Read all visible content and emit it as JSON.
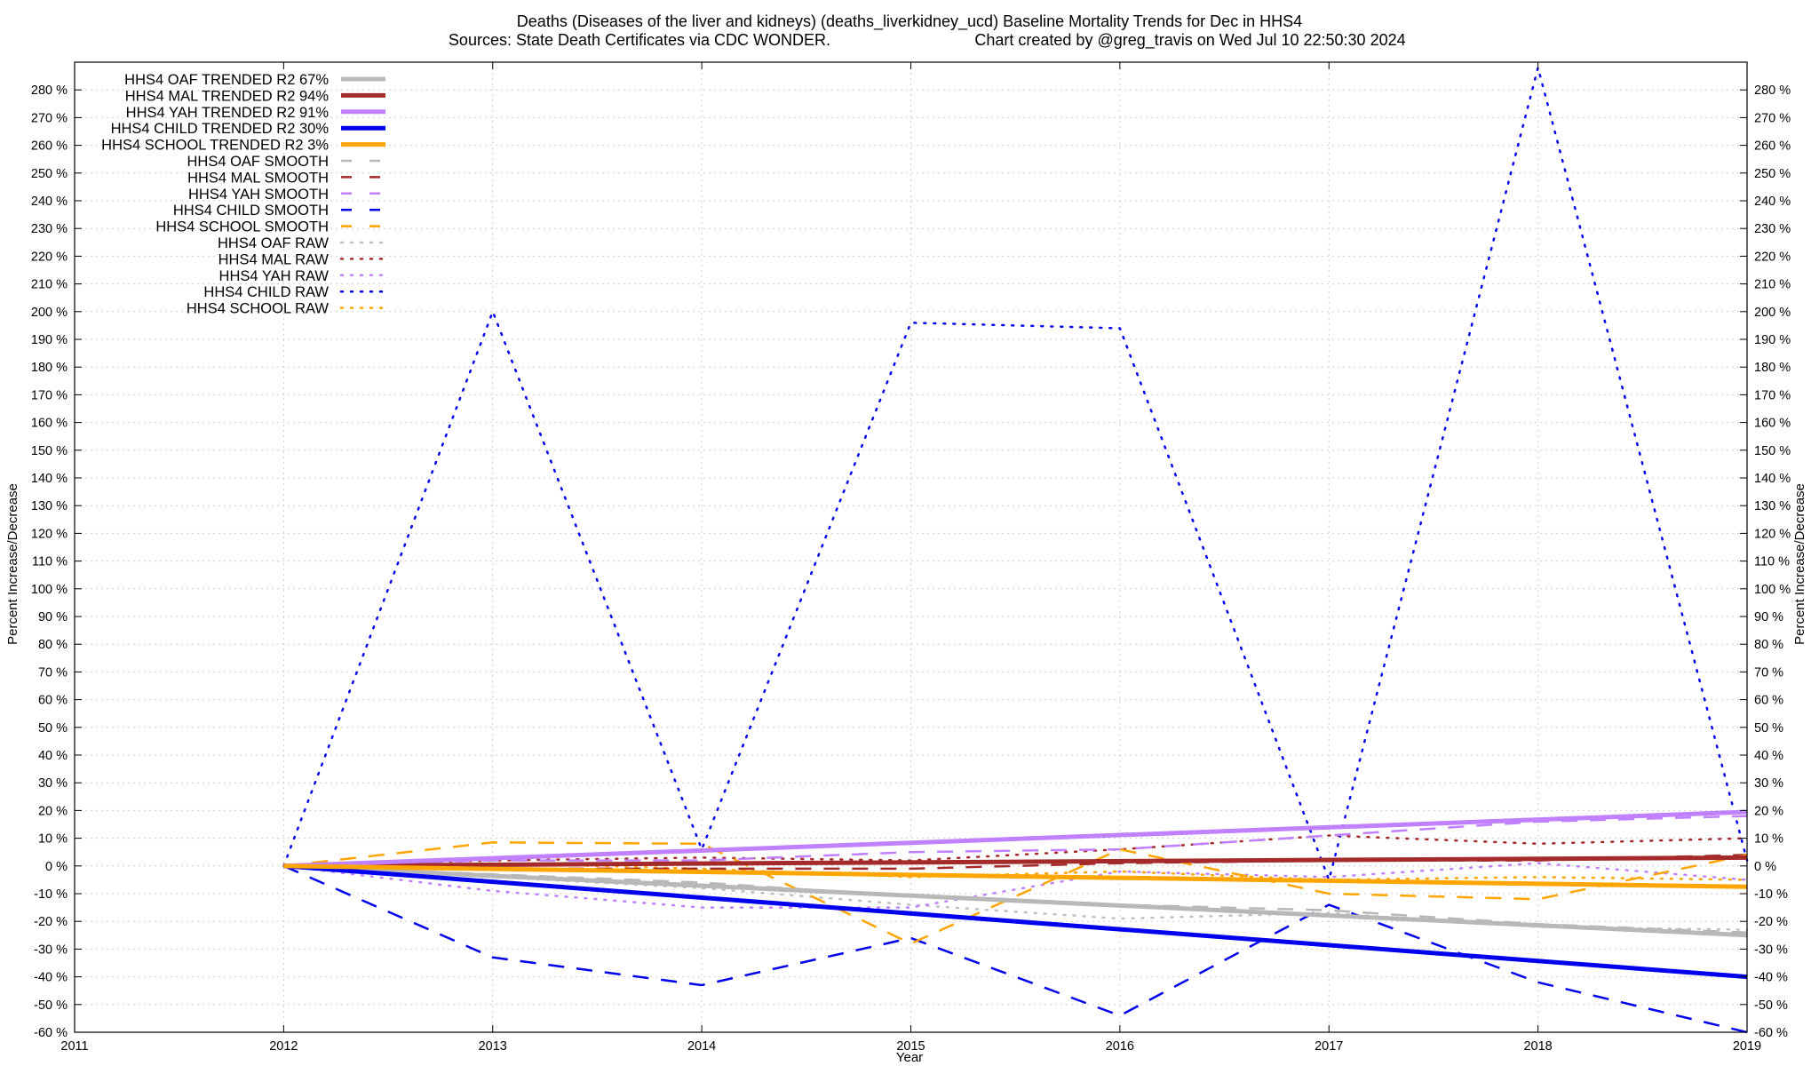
{
  "chart_data": {
    "type": "line",
    "title_line1": "Deaths (Diseases of the liver and kidneys) (deaths_liverkidney_ucd)  Baseline Mortality Trends for Dec in HHS4",
    "title_line2_left": "Sources: State Death Certificates via CDC WONDER.",
    "title_line2_right": "Chart created by @greg_travis on Wed Jul 10 22:50:30 2024",
    "xlabel": "Year",
    "ylabel_left": "Percent Increase/Decrease",
    "ylabel_right": "Percent Increase/Decrease",
    "xlim": [
      2011,
      2019
    ],
    "ylim": [
      -60,
      290
    ],
    "x_ticks": [
      2011,
      2012,
      2013,
      2014,
      2015,
      2016,
      2017,
      2018,
      2019
    ],
    "x_tick_labels": [
      "2011",
      "2012",
      "2013",
      "2014",
      "2015",
      "2016",
      "2017",
      "2018",
      "2019"
    ],
    "y_ticks": [
      -60,
      -50,
      -40,
      -30,
      -20,
      -10,
      0,
      10,
      20,
      30,
      40,
      50,
      60,
      70,
      80,
      90,
      100,
      110,
      120,
      130,
      140,
      150,
      160,
      170,
      180,
      190,
      200,
      210,
      220,
      230,
      240,
      250,
      260,
      270,
      280
    ],
    "y_tick_labels": [
      "-60 %",
      "-50 %",
      "-40 %",
      "-30 %",
      "-20 %",
      "-10 %",
      "0 %",
      "10 %",
      "20 %",
      "30 %",
      "40 %",
      "50 %",
      "60 %",
      "70 %",
      "80 %",
      "90 %",
      "100 %",
      "110 %",
      "120 %",
      "130 %",
      "140 %",
      "150 %",
      "160 %",
      "170 %",
      "180 %",
      "190 %",
      "200 %",
      "210 %",
      "220 %",
      "230 %",
      "240 %",
      "250 %",
      "260 %",
      "270 %",
      "280 %"
    ],
    "grid": true,
    "legend_position": "top-left",
    "series": [
      {
        "name": "HHS4 OAF TRENDED R2  67%",
        "style": "solid",
        "color": "#b8b8b8",
        "width": 5,
        "x": [
          2012,
          2019
        ],
        "y": [
          0,
          -25
        ]
      },
      {
        "name": "HHS4 MAL TRENDED R2  94%",
        "style": "solid",
        "color": "#a52a2a",
        "width": 5,
        "x": [
          2012,
          2019
        ],
        "y": [
          0,
          3
        ]
      },
      {
        "name": "HHS4 YAH TRENDED R2  91%",
        "style": "solid",
        "color": "#c080ff",
        "width": 5,
        "x": [
          2012,
          2019
        ],
        "y": [
          0,
          19.5
        ]
      },
      {
        "name": "HHS4 CHILD TRENDED R2  30%",
        "style": "solid",
        "color": "#0000ee",
        "width": 5,
        "x": [
          2012,
          2019
        ],
        "y": [
          0,
          -40
        ]
      },
      {
        "name": "HHS4 SCHOOL TRENDED R2   3%",
        "style": "solid",
        "color": "#ffa500",
        "width": 5,
        "x": [
          2012,
          2019
        ],
        "y": [
          0,
          -7.5
        ]
      },
      {
        "name": "HHS4 OAF SMOOTH",
        "style": "dashed",
        "color": "#b8b8b8",
        "width": 2.5,
        "x": [
          2012,
          2013,
          2014,
          2015,
          2016,
          2017,
          2018,
          2019
        ],
        "y": [
          0,
          -3,
          -6,
          -11,
          -14,
          -16,
          -21,
          -24
        ]
      },
      {
        "name": "HHS4 MAL SMOOTH",
        "style": "dashed",
        "color": "#a52a2a",
        "width": 2.5,
        "x": [
          2012,
          2013,
          2014,
          2015,
          2016,
          2017,
          2018,
          2019
        ],
        "y": [
          0,
          -1,
          -1,
          -1,
          1,
          2,
          2,
          4
        ]
      },
      {
        "name": "HHS4 YAH SMOOTH",
        "style": "dashed",
        "color": "#c080ff",
        "width": 2.5,
        "x": [
          2012,
          2013,
          2014,
          2015,
          2016,
          2017,
          2018,
          2019
        ],
        "y": [
          0,
          2,
          2,
          5,
          6,
          11,
          16,
          18
        ]
      },
      {
        "name": "HHS4 CHILD SMOOTH",
        "style": "dashed",
        "color": "#0000ee",
        "width": 2.5,
        "x": [
          2012,
          2013,
          2014,
          2015,
          2016,
          2017,
          2018,
          2019
        ],
        "y": [
          0,
          -33,
          -43,
          -26,
          -54,
          -14,
          -42,
          -60
        ]
      },
      {
        "name": "HHS4 SCHOOL SMOOTH",
        "style": "dashed",
        "color": "#ffa500",
        "width": 2.5,
        "x": [
          2012,
          2013,
          2014,
          2015,
          2016,
          2017,
          2018,
          2019
        ],
        "y": [
          0,
          8.5,
          8,
          -28,
          6,
          -10,
          -12,
          4
        ]
      },
      {
        "name": "HHS4 OAF RAW",
        "style": "dotted",
        "color": "#c0c0c0",
        "width": 2.5,
        "x": [
          2012,
          2013,
          2014,
          2015,
          2016,
          2017,
          2018,
          2019
        ],
        "y": [
          0,
          -4,
          -8,
          -14,
          -19,
          -17,
          -22,
          -23
        ]
      },
      {
        "name": "HHS4 MAL RAW",
        "style": "dotted",
        "color": "#a52a2a",
        "width": 2.5,
        "x": [
          2012,
          2013,
          2014,
          2015,
          2016,
          2017,
          2018,
          2019
        ],
        "y": [
          0,
          2,
          3,
          2,
          6,
          11,
          8,
          10
        ]
      },
      {
        "name": "HHS4 YAH RAW",
        "style": "dotted",
        "color": "#c080ff",
        "width": 2.5,
        "x": [
          2012,
          2013,
          2014,
          2015,
          2016,
          2017,
          2018,
          2019
        ],
        "y": [
          0,
          -9,
          -15,
          -15,
          -2,
          -4,
          1,
          -5
        ]
      },
      {
        "name": "HHS4 CHILD RAW",
        "style": "dotted",
        "color": "#0000ee",
        "width": 2.5,
        "x": [
          2012,
          2013,
          2014,
          2015,
          2016,
          2017,
          2018,
          2019
        ],
        "y": [
          0,
          200,
          6,
          196,
          194,
          -5,
          288,
          2
        ]
      },
      {
        "name": "HHS4 SCHOOL RAW",
        "style": "dotted",
        "color": "#ffa500",
        "width": 2.5,
        "x": [
          2012,
          2013,
          2014,
          2015,
          2016,
          2017,
          2018,
          2019
        ],
        "y": [
          0,
          1,
          -1,
          -4,
          -2,
          -5,
          -4,
          -5
        ]
      }
    ]
  }
}
